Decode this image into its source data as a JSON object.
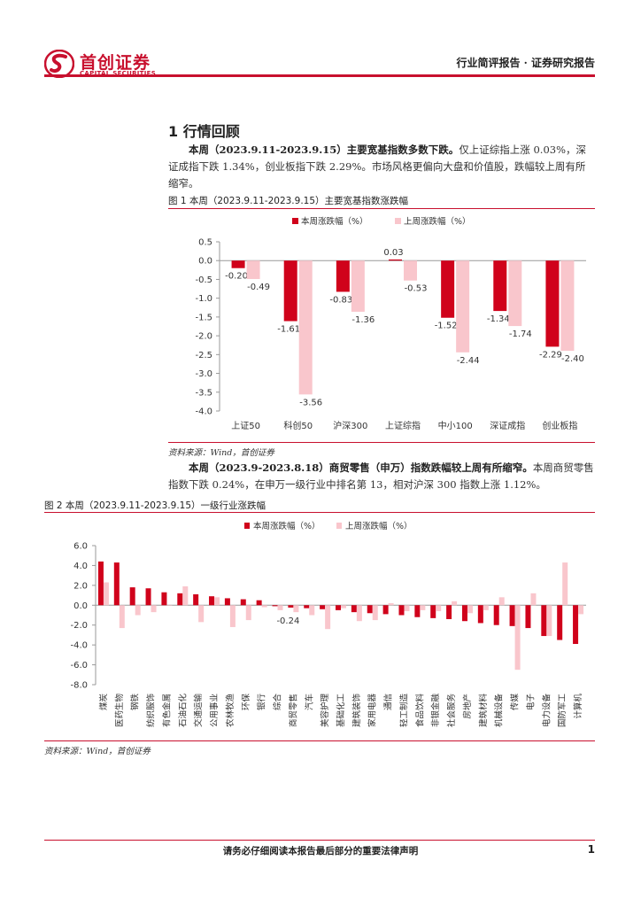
{
  "header": {
    "logo_cn": "首创证券",
    "logo_en": "CAPITAL SECURITIES",
    "right_text": "行业简评报告 · 证券研究报告"
  },
  "section": {
    "title": "1 行情回顾"
  },
  "para1": {
    "bold": "本周（2023.9.11-2023.9.15）主要宽基指数多数下跌。",
    "text": "仅上证综指上涨 0.03%，深证成指下跌 1.34%，创业板指下跌 2.29%。市场风格更偏向大盘和价值股，跌幅较上周有所缩窄。"
  },
  "figure1": {
    "caption": "图 1 本周（2023.9.11-2023.9.15）主要宽基指数涨跌幅",
    "source": "资料来源：Wind，首创证券"
  },
  "para2": {
    "bold": "本周（2023.9-2023.8.18）商贸零售（申万）指数跌幅较上周有所缩窄。",
    "text": "本周商贸零售指数下跌 0.24%，在申万一级行业中排名第 13，相对沪深 300 指数上涨 1.12%。"
  },
  "figure2": {
    "caption": "图 2 本周（2023.9.11-2023.9.15）一级行业涨跌幅",
    "source": "资料来源：Wind，首创证券"
  },
  "footer": {
    "disclaimer": "请务必仔细阅读本报告最后部分的重要法律声明",
    "page": "1"
  },
  "colors": {
    "current": "#d0021b",
    "previous": "#f9c6cc",
    "brand": "#c8102e"
  },
  "chart_data": [
    {
      "type": "bar",
      "categories": [
        "上证50",
        "科创50",
        "沪深300",
        "上证综指",
        "中小100",
        "深证成指",
        "创业板指"
      ],
      "series": [
        {
          "name": "本周涨跌幅（%）",
          "values": [
            -0.2,
            -1.61,
            -0.83,
            0.03,
            -1.52,
            -1.34,
            -2.29
          ]
        },
        {
          "name": "上周涨跌幅（%）",
          "values": [
            -0.49,
            -3.56,
            -1.36,
            -0.53,
            -2.44,
            -1.74,
            -2.4
          ]
        }
      ],
      "data_labels": [
        [
          "-0.20",
          "-1.61",
          "-0.83",
          "0.03",
          "-1.52",
          "-1.34",
          "-2.29"
        ],
        [
          "-0.49",
          "-3.56",
          "-1.36",
          "-0.53",
          "-2.44",
          "-1.74",
          "-2.40"
        ]
      ],
      "yticks": [
        "0.5",
        "0.0",
        "-0.5",
        "-1.0",
        "-1.5",
        "-2.0",
        "-2.5",
        "-3.0",
        "-3.5",
        "-4.0"
      ],
      "ylim": [
        -4.0,
        0.5
      ],
      "legend": "top-center",
      "grid": false
    },
    {
      "type": "bar",
      "categories": [
        "煤炭",
        "医药生物",
        "钢铁",
        "纺织服饰",
        "有色金属",
        "石油石化",
        "交通运输",
        "公用事业",
        "农林牧渔",
        "环保",
        "银行",
        "综合",
        "商贸零售",
        "汽车",
        "美容护理",
        "基础化工",
        "建筑装饰",
        "家用电器",
        "通信",
        "轻工制造",
        "食品饮料",
        "非银金融",
        "社会服务",
        "房地产",
        "建筑材料",
        "机械设备",
        "传媒",
        "电子",
        "电力设备",
        "国防军工",
        "计算机"
      ],
      "series": [
        {
          "name": "本周涨跌幅（%）",
          "values": [
            4.4,
            4.3,
            1.8,
            1.7,
            1.3,
            1.2,
            1.1,
            0.9,
            0.7,
            0.6,
            0.5,
            -0.1,
            -0.24,
            -0.3,
            -0.4,
            -0.5,
            -0.7,
            -0.8,
            -0.9,
            -1.0,
            -1.2,
            -1.3,
            -1.4,
            -1.6,
            -1.8,
            -2.0,
            -2.1,
            -2.3,
            -3.1,
            -3.5,
            -3.9
          ]
        },
        {
          "name": "上周涨跌幅（%）",
          "values": [
            2.3,
            -2.3,
            -1.0,
            -0.7,
            0.0,
            1.9,
            -1.7,
            0.8,
            -2.2,
            -1.5,
            -0.2,
            -0.5,
            -0.7,
            -1.0,
            -2.4,
            -0.3,
            -1.6,
            -1.5,
            0.2,
            -0.6,
            -0.5,
            -0.6,
            0.4,
            -0.8,
            -0.5,
            0.8,
            -6.5,
            1.2,
            -3.1,
            4.3,
            -0.9
          ]
        }
      ],
      "data_labels": [
        {
          "category": "商贸零售",
          "label": "-0.24"
        }
      ],
      "yticks": [
        "6.0",
        "4.0",
        "2.0",
        "0.0",
        "-2.0",
        "-4.0",
        "-6.0",
        "-8.0"
      ],
      "ylim": [
        -8.0,
        6.0
      ],
      "legend": "top-center",
      "grid": false
    }
  ]
}
